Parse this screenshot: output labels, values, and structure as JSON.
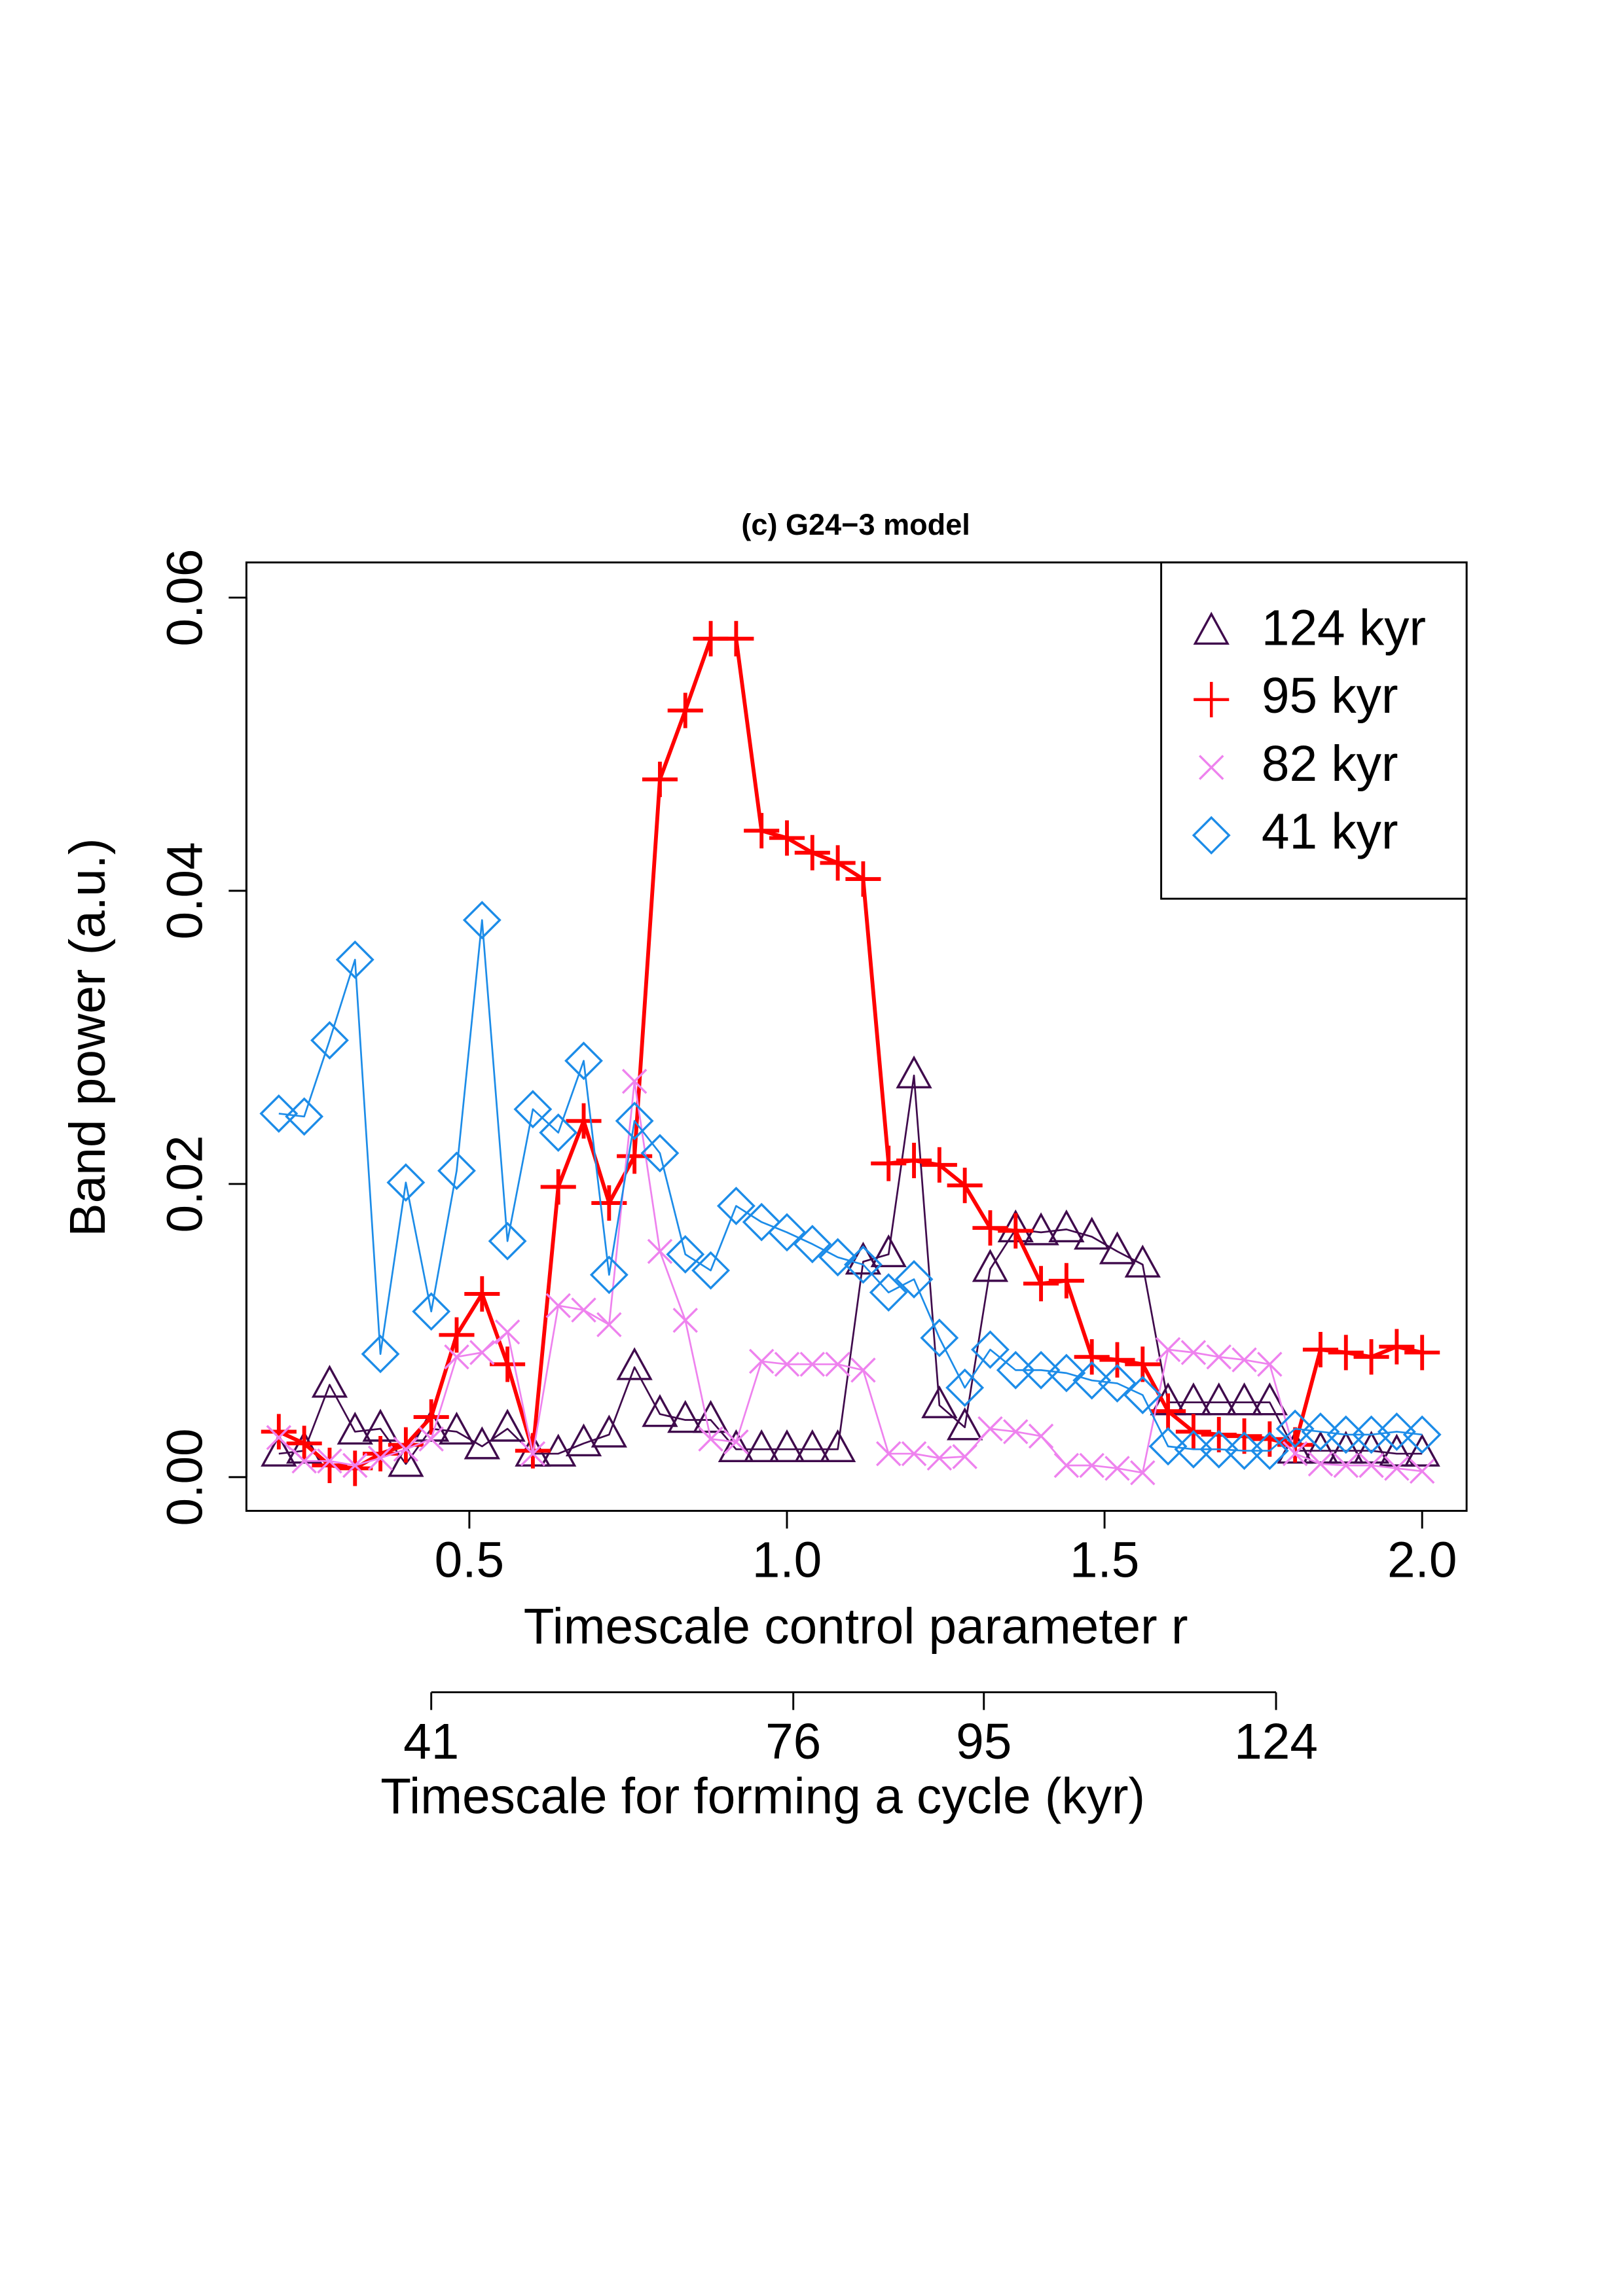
{
  "chart_data": {
    "type": "line",
    "title": "(c) G24−3 model",
    "xlabel": "Timescale control parameter r",
    "ylabel": "Band power (a.u.)",
    "x": [
      0.2,
      0.24,
      0.28,
      0.32,
      0.36,
      0.4,
      0.44,
      0.48,
      0.52,
      0.56,
      0.6,
      0.64,
      0.68,
      0.72,
      0.76,
      0.8,
      0.84,
      0.88,
      0.92,
      0.96,
      1.0,
      1.04,
      1.08,
      1.12,
      1.16,
      1.2,
      1.24,
      1.28,
      1.32,
      1.36,
      1.4,
      1.44,
      1.48,
      1.52,
      1.56,
      1.6,
      1.64,
      1.68,
      1.72,
      1.76,
      1.8,
      1.84,
      1.88,
      1.92,
      1.96,
      2.0
    ],
    "series": [
      {
        "name": "124 kyr",
        "color": "#3f0a4c",
        "marker": "triangle",
        "width": 1.2,
        "values": [
          0.0016,
          0.0018,
          0.0063,
          0.0031,
          0.0033,
          0.0009,
          0.0033,
          0.0031,
          0.0021,
          0.0033,
          0.0016,
          0.0016,
          0.0023,
          0.0029,
          0.0075,
          0.0043,
          0.0039,
          0.0039,
          0.0019,
          0.0019,
          0.0019,
          0.0019,
          0.0019,
          0.0147,
          0.0152,
          0.0274,
          0.0049,
          0.0034,
          0.0142,
          0.0169,
          0.0167,
          0.0169,
          0.0164,
          0.0154,
          0.0145,
          0.0051,
          0.0051,
          0.0051,
          0.0051,
          0.0051,
          0.0018,
          0.0018,
          0.0018,
          0.0018,
          0.0016,
          0.0016
        ]
      },
      {
        "name": "95 kyr",
        "color": "#ff0000",
        "marker": "plus",
        "width": 2.6,
        "values": [
          0.0031,
          0.0023,
          0.0008,
          0.0006,
          0.0016,
          0.0022,
          0.0041,
          0.0097,
          0.0125,
          0.0077,
          0.0018,
          0.0198,
          0.0243,
          0.0187,
          0.0219,
          0.0476,
          0.0523,
          0.0572,
          0.0572,
          0.0441,
          0.0436,
          0.0426,
          0.0419,
          0.0408,
          0.0214,
          0.0216,
          0.0213,
          0.0199,
          0.017,
          0.0168,
          0.0132,
          0.0134,
          0.0082,
          0.008,
          0.0077,
          0.0045,
          0.0031,
          0.0029,
          0.0028,
          0.0026,
          0.0022,
          0.0087,
          0.0085,
          0.0082,
          0.0089,
          0.0085
        ]
      },
      {
        "name": "82 kyr",
        "color": "#ee82ee",
        "marker": "cross",
        "width": 1.2,
        "values": [
          0.0027,
          0.0011,
          0.0011,
          0.0008,
          0.0013,
          0.0019,
          0.0026,
          0.0082,
          0.0085,
          0.0099,
          0.0016,
          0.0117,
          0.0114,
          0.0104,
          0.027,
          0.0154,
          0.0107,
          0.0026,
          0.0024,
          0.0079,
          0.0077,
          0.0077,
          0.0077,
          0.0073,
          0.0016,
          0.0016,
          0.0013,
          0.0014,
          0.0033,
          0.0031,
          0.0028,
          0.0008,
          0.0008,
          0.0006,
          0.0003,
          0.0087,
          0.0085,
          0.0082,
          0.008,
          0.0077,
          0.0016,
          0.0009,
          0.0008,
          0.0008,
          0.0006,
          0.0004
        ]
      },
      {
        "name": "41 kyr",
        "color": "#1c8ce8",
        "marker": "diamond",
        "width": 1.2,
        "values": [
          0.0248,
          0.0246,
          0.0298,
          0.0353,
          0.0084,
          0.0201,
          0.0113,
          0.0209,
          0.038,
          0.0161,
          0.0251,
          0.0235,
          0.0284,
          0.0138,
          0.0243,
          0.0221,
          0.0152,
          0.0141,
          0.0185,
          0.0174,
          0.0167,
          0.0159,
          0.015,
          0.0145,
          0.0126,
          0.0135,
          0.0095,
          0.0061,
          0.0087,
          0.0073,
          0.0073,
          0.0071,
          0.0066,
          0.0064,
          0.0056,
          0.0021,
          0.0019,
          0.0019,
          0.0018,
          0.0018,
          0.0033,
          0.0031,
          0.0029,
          0.0029,
          0.0031,
          0.0029
        ]
      }
    ],
    "xlim": [
      0.149,
      2.07
    ],
    "ylim": [
      -0.0023,
      0.0624
    ],
    "xticks": [
      0.5,
      {
        "value": 1.0,
        "label": "1.0"
      },
      1.5,
      {
        "value": 2.0,
        "label": "2.0"
      }
    ],
    "yticks": [
      {
        "value": 0,
        "label": "0.00"
      },
      0.02,
      0.04,
      0.06
    ],
    "x2label": "Timescale for forming a cycle (kyr)",
    "x2ticks": [
      {
        "value": 0.44,
        "label": "41"
      },
      {
        "value": 1.01,
        "label": "76"
      },
      {
        "value": 1.31,
        "label": "95"
      },
      {
        "value": 1.77,
        "label": "124"
      }
    ],
    "legend": "top-right",
    "grid": false
  }
}
